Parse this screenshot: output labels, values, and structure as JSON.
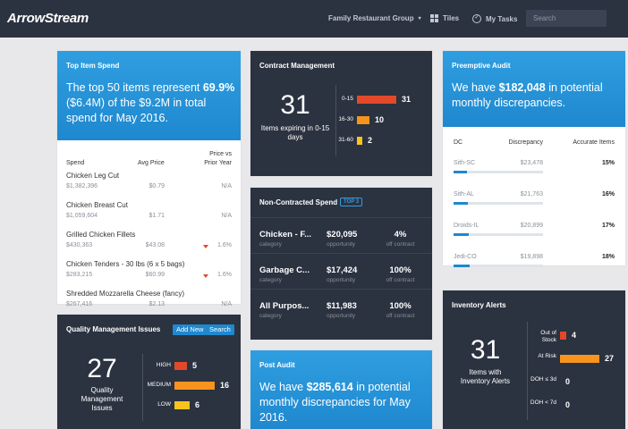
{
  "header": {
    "logo": "ArrowStream",
    "group": "Family Restaurant Group",
    "tiles": "Tiles",
    "my_tasks": "My Tasks",
    "search_placeholder": "Search"
  },
  "top_item_spend": {
    "title": "Top Item Spend",
    "hero_pre": "The top 50 items represent ",
    "hero_pct": "69.9%",
    "hero_mid": " ($6.4M) of the $9.2M in total spend for May 2016.",
    "col_spend": "Spend",
    "col_avg": "Avg Price",
    "col_pv1": "Price vs",
    "col_pv2": "Prior Year",
    "items": [
      {
        "name": "Chicken Leg Cut",
        "spend": "$1,382,396",
        "avg": "$0.79",
        "change": "N/A",
        "down": false
      },
      {
        "name": "Chicken Breast Cut",
        "spend": "$1,059,604",
        "avg": "$1.71",
        "change": "N/A",
        "down": false
      },
      {
        "name": "Grilled Chicken Fillets",
        "spend": "$430,363",
        "avg": "$43.08",
        "change": "1.6%",
        "down": true
      },
      {
        "name": "Chicken Tenders - 30 lbs (6 x 5 bags)",
        "spend": "$283,215",
        "avg": "$60.99",
        "change": "1.6%",
        "down": true
      },
      {
        "name": "Shredded Mozzarella Cheese (fancy)",
        "spend": "$267,416",
        "avg": "$2.13",
        "change": "N/A",
        "down": false
      }
    ]
  },
  "contract_mgmt": {
    "title": "Contract Management",
    "big": "31",
    "sub": "Items expiring in 0-15 days",
    "bars": [
      {
        "label": "0-15",
        "value": 31,
        "color": "#e2492b"
      },
      {
        "label": "16-30",
        "value": 10,
        "color": "#f7941d"
      },
      {
        "label": "31-60",
        "value": 2,
        "color": "#f9c31f"
      }
    ]
  },
  "preemptive_audit": {
    "title": "Preemptive Audit",
    "hero_pre": "We have ",
    "hero_amt": "$182,048",
    "hero_post": " in potential monthly discrepancies.",
    "col_dc": "DC",
    "col_disc": "Discrepancy",
    "col_acc": "Accurate Items",
    "rows": [
      {
        "dc": "Sith-SC",
        "disc": "$23,478",
        "acc": "15%",
        "fill": 0.15
      },
      {
        "dc": "Sith-AL",
        "disc": "$21,763",
        "acc": "16%",
        "fill": 0.16
      },
      {
        "dc": "Droids-IL",
        "disc": "$20,899",
        "acc": "17%",
        "fill": 0.17
      },
      {
        "dc": "Jedi-CO",
        "disc": "$19,898",
        "acc": "18%",
        "fill": 0.18
      }
    ]
  },
  "non_contracted": {
    "title": "Non-Contracted Spend",
    "badge": "TOP 3",
    "rows": [
      {
        "name": "Chicken - F...",
        "cat": "category",
        "amt": "$20,095",
        "opp": "opportunity",
        "pct": "4%",
        "off": "off contract"
      },
      {
        "name": "Garbage C...",
        "cat": "category",
        "amt": "$17,424",
        "opp": "opportunity",
        "pct": "100%",
        "off": "off contract"
      },
      {
        "name": "All Purpos...",
        "cat": "category",
        "amt": "$11,983",
        "opp": "opportunity",
        "pct": "100%",
        "off": "off contract"
      }
    ]
  },
  "quality": {
    "title": "Quality Management Issues",
    "add_new": "Add New",
    "search": "Search",
    "big": "27",
    "sub": "Quality Management Issues",
    "bars": [
      {
        "label": "HIGH",
        "value": 5,
        "color": "#e2492b"
      },
      {
        "label": "MEDIUM",
        "value": 16,
        "color": "#f7941d"
      },
      {
        "label": "LOW",
        "value": 6,
        "color": "#f9c31f"
      }
    ]
  },
  "post_audit": {
    "title": "Post Audit",
    "hero_pre": "We have ",
    "hero_amt": "$285,614",
    "hero_post": " in potential monthly discrepancies for May 2016."
  },
  "inventory": {
    "title": "Inventory Alerts",
    "big": "31",
    "sub": "Items with Inventory Alerts",
    "bars": [
      {
        "label": "Out of Stock",
        "value": 4,
        "color": "#e2492b"
      },
      {
        "label": "At Risk",
        "value": 27,
        "color": "#f7941d"
      },
      {
        "label": "DOH ≤ 3d",
        "value": 0,
        "color": "#f9c31f"
      },
      {
        "label": "DOH < 7d",
        "value": 0,
        "color": "#f9c31f"
      }
    ]
  }
}
